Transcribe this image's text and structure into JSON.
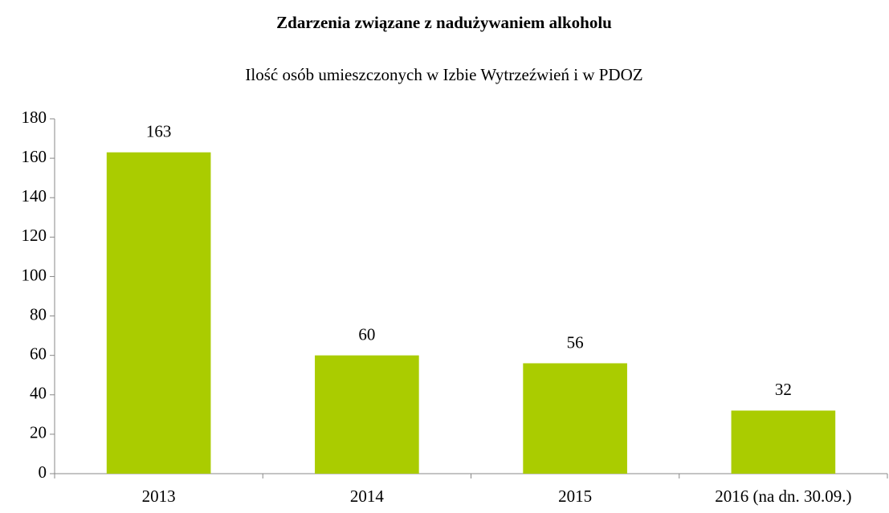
{
  "chart_data": {
    "type": "bar",
    "title": "Zdarzenia związane z nadużywaniem alkoholu",
    "subtitle": "Ilość osób umieszczonych w Izbie Wytrzeźwień i w PDOZ",
    "categories": [
      "2013",
      "2014",
      "2015",
      "2016 (na dn. 30.09.)"
    ],
    "values": [
      163,
      60,
      56,
      32
    ],
    "color": "#aacc00",
    "ylim": [
      0,
      180
    ],
    "yticks": [
      0,
      20,
      40,
      60,
      80,
      100,
      120,
      140,
      160,
      180
    ],
    "grid": false,
    "data_labels": true
  }
}
